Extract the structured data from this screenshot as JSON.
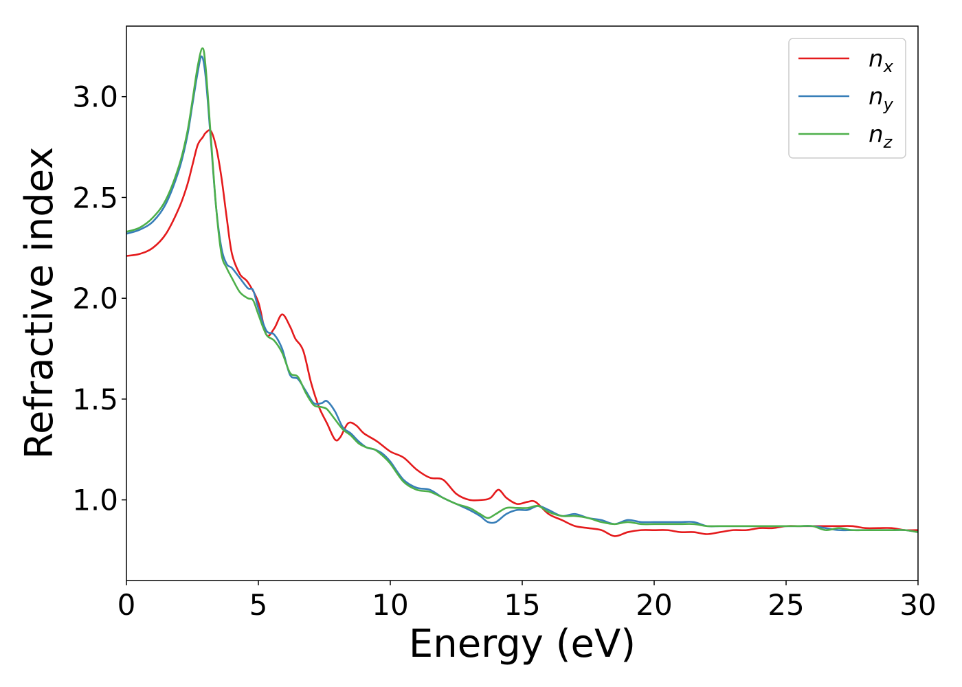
{
  "chart_data": {
    "type": "line",
    "xlabel": "Energy (eV)",
    "ylabel": "Refractive index",
    "xlim": [
      0,
      30
    ],
    "ylim": [
      0.6,
      3.35
    ],
    "xticks": [
      0,
      5,
      10,
      15,
      20,
      25,
      30
    ],
    "xtick_labels": [
      "0",
      "5",
      "10",
      "15",
      "20",
      "25",
      "30"
    ],
    "yticks": [
      1.0,
      1.5,
      2.0,
      2.5,
      3.0
    ],
    "ytick_labels": [
      "1.0",
      "1.5",
      "2.0",
      "2.5",
      "3.0"
    ],
    "grid": false,
    "legend_position": "top-right",
    "series": [
      {
        "name": "n",
        "subscript": "x",
        "color": "#e41a1c",
        "x": [
          0,
          0.5,
          1.0,
          1.5,
          2.0,
          2.3,
          2.5,
          2.7,
          2.9,
          3.0,
          3.2,
          3.4,
          3.6,
          3.8,
          4.0,
          4.3,
          4.6,
          5.0,
          5.3,
          5.6,
          5.9,
          6.2,
          6.4,
          6.7,
          7.0,
          7.3,
          7.6,
          7.9,
          8.1,
          8.4,
          8.7,
          9.0,
          9.5,
          10.0,
          10.5,
          11.0,
          11.5,
          12.0,
          12.5,
          13.0,
          13.5,
          13.8,
          14.1,
          14.4,
          14.8,
          15.2,
          15.5,
          16.0,
          16.5,
          17.0,
          17.5,
          18.0,
          18.5,
          19.0,
          19.5,
          20.0,
          20.5,
          21.0,
          21.5,
          22.0,
          22.5,
          23.0,
          23.5,
          24.0,
          24.5,
          25.0,
          25.5,
          26.0,
          26.5,
          27.0,
          27.5,
          28.0,
          28.5,
          29.0,
          29.5,
          30.0
        ],
        "values": [
          2.21,
          2.22,
          2.25,
          2.32,
          2.45,
          2.56,
          2.66,
          2.76,
          2.8,
          2.82,
          2.83,
          2.75,
          2.6,
          2.4,
          2.22,
          2.12,
          2.08,
          1.98,
          1.82,
          1.85,
          1.92,
          1.86,
          1.8,
          1.74,
          1.58,
          1.46,
          1.38,
          1.3,
          1.31,
          1.38,
          1.37,
          1.33,
          1.29,
          1.24,
          1.21,
          1.15,
          1.11,
          1.1,
          1.03,
          1.0,
          1.0,
          1.01,
          1.05,
          1.01,
          0.98,
          0.99,
          0.99,
          0.93,
          0.9,
          0.87,
          0.86,
          0.85,
          0.82,
          0.84,
          0.85,
          0.85,
          0.85,
          0.84,
          0.84,
          0.83,
          0.84,
          0.85,
          0.85,
          0.86,
          0.86,
          0.87,
          0.87,
          0.87,
          0.87,
          0.87,
          0.87,
          0.86,
          0.86,
          0.86,
          0.85,
          0.85
        ]
      },
      {
        "name": "n",
        "subscript": "y",
        "color": "#377eb8",
        "x": [
          0,
          0.5,
          1.0,
          1.5,
          2.0,
          2.3,
          2.5,
          2.7,
          2.85,
          3.0,
          3.2,
          3.4,
          3.6,
          3.8,
          4.0,
          4.3,
          4.6,
          4.8,
          5.0,
          5.3,
          5.6,
          5.9,
          6.2,
          6.5,
          6.8,
          7.1,
          7.4,
          7.6,
          7.9,
          8.2,
          8.5,
          8.8,
          9.1,
          9.4,
          9.7,
          10.0,
          10.5,
          11.0,
          11.5,
          12.0,
          12.5,
          13.0,
          13.4,
          13.7,
          14.0,
          14.4,
          14.8,
          15.2,
          15.6,
          16.0,
          16.5,
          17.0,
          17.5,
          18.0,
          18.5,
          19.0,
          19.5,
          20.0,
          20.5,
          21.0,
          21.5,
          22.0,
          22.5,
          23.0,
          23.5,
          24.0,
          24.5,
          25.0,
          25.5,
          26.0,
          26.5,
          27.0,
          27.5,
          28.0,
          28.5,
          29.0,
          29.5,
          30.0
        ],
        "values": [
          2.32,
          2.34,
          2.38,
          2.47,
          2.64,
          2.8,
          2.96,
          3.12,
          3.2,
          3.1,
          2.78,
          2.45,
          2.25,
          2.17,
          2.15,
          2.1,
          2.05,
          2.04,
          1.95,
          1.84,
          1.82,
          1.75,
          1.62,
          1.6,
          1.54,
          1.48,
          1.48,
          1.49,
          1.44,
          1.36,
          1.33,
          1.29,
          1.26,
          1.25,
          1.23,
          1.19,
          1.1,
          1.06,
          1.05,
          1.01,
          0.98,
          0.95,
          0.92,
          0.89,
          0.89,
          0.93,
          0.95,
          0.95,
          0.97,
          0.95,
          0.92,
          0.93,
          0.91,
          0.9,
          0.88,
          0.9,
          0.89,
          0.89,
          0.89,
          0.89,
          0.89,
          0.87,
          0.87,
          0.87,
          0.87,
          0.87,
          0.87,
          0.87,
          0.87,
          0.87,
          0.86,
          0.85,
          0.85,
          0.85,
          0.85,
          0.85,
          0.85,
          0.84
        ]
      },
      {
        "name": "n",
        "subscript": "z",
        "color": "#4daf4a",
        "x": [
          0,
          0.5,
          1.0,
          1.5,
          2.0,
          2.3,
          2.5,
          2.7,
          2.88,
          3.0,
          3.2,
          3.4,
          3.6,
          3.8,
          4.0,
          4.3,
          4.6,
          4.8,
          5.0,
          5.3,
          5.6,
          5.9,
          6.2,
          6.5,
          6.8,
          7.1,
          7.4,
          7.6,
          7.9,
          8.2,
          8.5,
          8.8,
          9.1,
          9.4,
          9.7,
          10.0,
          10.5,
          11.0,
          11.5,
          12.0,
          12.5,
          13.0,
          13.4,
          13.7,
          14.0,
          14.4,
          14.8,
          15.2,
          15.6,
          16.0,
          16.5,
          17.0,
          17.5,
          18.0,
          18.5,
          19.0,
          19.5,
          20.0,
          20.5,
          21.0,
          21.5,
          22.0,
          22.5,
          23.0,
          23.5,
          24.0,
          24.5,
          25.0,
          25.5,
          26.0,
          26.5,
          27.0,
          27.5,
          28.0,
          28.5,
          29.0,
          29.5,
          30.0
        ],
        "values": [
          2.33,
          2.35,
          2.4,
          2.49,
          2.66,
          2.82,
          2.98,
          3.15,
          3.24,
          3.15,
          2.8,
          2.45,
          2.22,
          2.15,
          2.1,
          2.03,
          2.0,
          1.99,
          1.92,
          1.82,
          1.79,
          1.73,
          1.63,
          1.61,
          1.53,
          1.47,
          1.46,
          1.45,
          1.4,
          1.35,
          1.32,
          1.28,
          1.26,
          1.25,
          1.22,
          1.18,
          1.09,
          1.05,
          1.04,
          1.01,
          0.98,
          0.96,
          0.93,
          0.91,
          0.93,
          0.96,
          0.96,
          0.96,
          0.97,
          0.94,
          0.92,
          0.92,
          0.91,
          0.89,
          0.88,
          0.89,
          0.88,
          0.88,
          0.88,
          0.88,
          0.88,
          0.87,
          0.87,
          0.87,
          0.87,
          0.87,
          0.87,
          0.87,
          0.87,
          0.87,
          0.85,
          0.86,
          0.85,
          0.85,
          0.85,
          0.85,
          0.85,
          0.84
        ]
      }
    ]
  }
}
